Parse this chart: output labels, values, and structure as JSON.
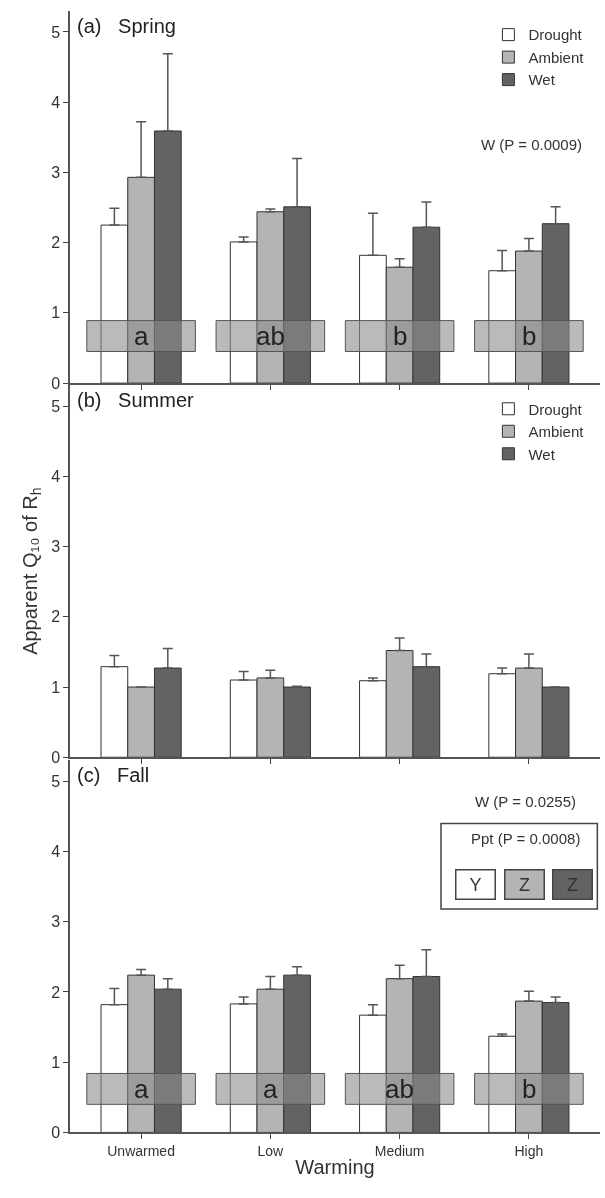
{
  "chart_data": [
    {
      "type": "bar",
      "title": "(a)   Spring",
      "categories": [
        null,
        null,
        null,
        null
      ],
      "ylim": [
        0,
        5.3
      ],
      "yticks": [
        0,
        1,
        2,
        3,
        4,
        5
      ],
      "legend": "top right",
      "tick_labels": "y",
      "series": [
        {
          "name": "Drought",
          "color": "#ffffff",
          "values": [
            2.25,
            2.01,
            1.82,
            1.6
          ],
          "errors": [
            [
              2.25,
              2.49
            ],
            [
              2.01,
              2.08
            ],
            [
              1.82,
              2.42
            ],
            [
              1.6,
              1.89
            ]
          ]
        },
        {
          "name": "Ambient",
          "color": "#b4b4b4",
          "values": [
            2.93,
            2.44,
            1.65,
            1.88
          ],
          "errors": [
            [
              2.93,
              3.72
            ],
            [
              2.44,
              2.48
            ],
            [
              1.65,
              1.77
            ],
            [
              1.88,
              2.06
            ]
          ]
        },
        {
          "name": "Wet",
          "color": "#636363",
          "values": [
            3.59,
            2.51,
            2.22,
            2.27
          ],
          "errors": [
            [
              3.59,
              4.69
            ],
            [
              2.51,
              3.2
            ],
            [
              2.22,
              2.58
            ],
            [
              2.27,
              2.51
            ]
          ]
        }
      ],
      "annotations": [
        "W (P = 0.0009)",
        "a",
        "ab",
        "b",
        "b"
      ]
    },
    {
      "type": "bar",
      "title": "(b)   Summer",
      "categories": [
        null,
        null,
        null,
        null
      ],
      "ylim": [
        0,
        5.3
      ],
      "yticks": [
        0,
        1,
        2,
        3,
        4,
        5
      ],
      "legend": "top right",
      "tick_labels": "y",
      "ylabel": "Apparent Q₁₀ of R$_{h}$",
      "series": [
        {
          "name": "Drought",
          "color": "#ffffff",
          "values": [
            1.29,
            1.1,
            1.09,
            1.19
          ],
          "errors": [
            [
              1.29,
              1.45
            ],
            [
              1.1,
              1.22
            ],
            [
              1.09,
              1.13
            ],
            [
              1.19,
              1.27
            ]
          ]
        },
        {
          "name": "Ambient",
          "color": "#b4b4b4",
          "values": [
            1.0,
            1.13,
            1.52,
            1.27
          ],
          "errors": [
            null,
            [
              1.13,
              1.24
            ],
            [
              1.52,
              1.7
            ],
            [
              1.27,
              1.47
            ]
          ]
        },
        {
          "name": "Wet",
          "color": "#636363",
          "values": [
            1.27,
            1.0,
            1.29,
            1.0
          ],
          "errors": [
            [
              1.27,
              1.55
            ],
            [
              1.0,
              1.01
            ],
            [
              1.29,
              1.47
            ],
            null
          ]
        }
      ]
    },
    {
      "type": "bar",
      "title": "(c)   Fall",
      "categories": [
        "Unwarmed",
        "Low",
        "Medium",
        "High"
      ],
      "ylim": [
        0,
        5.3
      ],
      "yticks": [
        0,
        1,
        2,
        3,
        4,
        5
      ],
      "xlabel": "Warming",
      "series": [
        {
          "color": "#ffffff",
          "values": [
            1.82,
            1.83,
            1.67,
            1.37
          ],
          "errors": [
            [
              1.82,
              2.05
            ],
            [
              1.83,
              1.93
            ],
            [
              1.67,
              1.82
            ],
            [
              1.37,
              1.4
            ]
          ]
        },
        {
          "color": "#b4b4b4",
          "values": [
            2.24,
            2.04,
            2.19,
            1.87
          ],
          "errors": [
            [
              2.24,
              2.32
            ],
            [
              2.04,
              2.22
            ],
            [
              2.19,
              2.38
            ],
            [
              1.87,
              2.01
            ]
          ]
        },
        {
          "color": "#636363",
          "values": [
            2.04,
            2.24,
            2.22,
            1.85
          ],
          "errors": [
            [
              2.04,
              2.19
            ],
            [
              2.24,
              2.36
            ],
            [
              2.22,
              2.6
            ],
            [
              1.85,
              1.93
            ]
          ]
        }
      ],
      "annotations": [
        "W (P = 0.0255)",
        "Ppt (P = 0.0008)",
        "Y",
        "Z",
        "Z",
        "a",
        "a",
        "ab",
        "b"
      ]
    }
  ]
}
